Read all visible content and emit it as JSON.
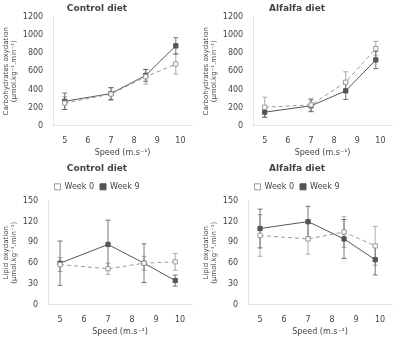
{
  "chart_data": [
    {
      "type": "line",
      "title": "Control diet",
      "xlabel": "Speed (m.s⁻¹)",
      "ylabel": "Carbohydrates oxydation\n(μmol.kg⁻¹.min⁻¹)",
      "x": [
        5,
        7,
        8.5,
        9.8
      ],
      "xlim": [
        4.5,
        10.5
      ],
      "xticks": [
        5,
        6,
        7,
        8,
        9,
        10
      ],
      "ylim": [
        0,
        1200
      ],
      "yticks": [
        0,
        200,
        400,
        600,
        800,
        1000,
        1200
      ],
      "grid": false,
      "series": [
        {
          "name": "Week 0",
          "color": "#999999",
          "line_style": "dashed",
          "marker": "square",
          "values": [
            250,
            350,
            540,
            680
          ],
          "errors": [
            70,
            70,
            80,
            110
          ]
        },
        {
          "name": "Week 9",
          "color": "#555555",
          "line_style": "solid",
          "marker": "square",
          "values": [
            270,
            355,
            555,
            880
          ],
          "errors": [
            90,
            65,
            65,
            90
          ]
        }
      ]
    },
    {
      "type": "line",
      "title": "Alfalfa diet",
      "xlabel": "Speed (m.s⁻¹)",
      "ylabel": "Carbohydrates oxydation\n(μmol.kg⁻¹.min⁻¹)",
      "x": [
        5,
        7,
        8.5,
        9.8
      ],
      "xlim": [
        4.5,
        10.5
      ],
      "xticks": [
        5,
        6,
        7,
        8,
        9,
        10
      ],
      "ylim": [
        0,
        1200
      ],
      "yticks": [
        0,
        200,
        400,
        600,
        800,
        1000,
        1200
      ],
      "grid": false,
      "series": [
        {
          "name": "Week 0",
          "color": "#999999",
          "line_style": "dashed",
          "marker": "square",
          "values": [
            205,
            230,
            480,
            850
          ],
          "errors": [
            110,
            70,
            115,
            80
          ]
        },
        {
          "name": "Week 9",
          "color": "#555555",
          "line_style": "solid",
          "marker": "square",
          "values": [
            150,
            220,
            385,
            725
          ],
          "errors": [
            55,
            65,
            95,
            95
          ]
        }
      ]
    },
    {
      "type": "line",
      "title": "Control diet",
      "xlabel": "Speed (m.s⁻¹)",
      "ylabel": "Lipid oxydation\n(μmol.kg⁻¹.min⁻¹)",
      "x": [
        5,
        7,
        8.5,
        9.8
      ],
      "xlim": [
        4.5,
        10.5
      ],
      "xticks": [
        5,
        6,
        7,
        8,
        9,
        10
      ],
      "ylim": [
        0,
        150
      ],
      "yticks": [
        0,
        30,
        60,
        90,
        120,
        150
      ],
      "grid": false,
      "legend": "top",
      "series": [
        {
          "name": "Week 0",
          "color": "#999999",
          "line_style": "dashed",
          "marker": "square",
          "values": [
            58,
            52,
            60,
            62
          ],
          "errors": [
            10,
            8,
            10,
            12
          ]
        },
        {
          "name": "Week 9",
          "color": "#555555",
          "line_style": "solid",
          "marker": "square",
          "values": [
            60,
            87,
            60,
            35
          ],
          "errors": [
            32,
            35,
            28,
            8
          ]
        }
      ]
    },
    {
      "type": "line",
      "title": "Alfalfa diet",
      "xlabel": "Speed (m.s⁻¹)",
      "ylabel": "Lipid oxydation\n(μmol.kg⁻¹.min⁻¹)",
      "x": [
        5,
        7,
        8.5,
        9.8
      ],
      "xlim": [
        4.5,
        10.5
      ],
      "xticks": [
        5,
        6,
        7,
        8,
        9,
        10
      ],
      "ylim": [
        0,
        150
      ],
      "yticks": [
        0,
        30,
        60,
        90,
        120,
        150
      ],
      "grid": false,
      "legend": "top",
      "series": [
        {
          "name": "Week 0",
          "color": "#999999",
          "line_style": "dashed",
          "marker": "square",
          "values": [
            100,
            95,
            105,
            85
          ],
          "errors": [
            30,
            22,
            22,
            28
          ]
        },
        {
          "name": "Week 9",
          "color": "#555555",
          "line_style": "solid",
          "marker": "square",
          "values": [
            110,
            120,
            95,
            65
          ],
          "errors": [
            28,
            22,
            28,
            22
          ]
        }
      ]
    }
  ]
}
